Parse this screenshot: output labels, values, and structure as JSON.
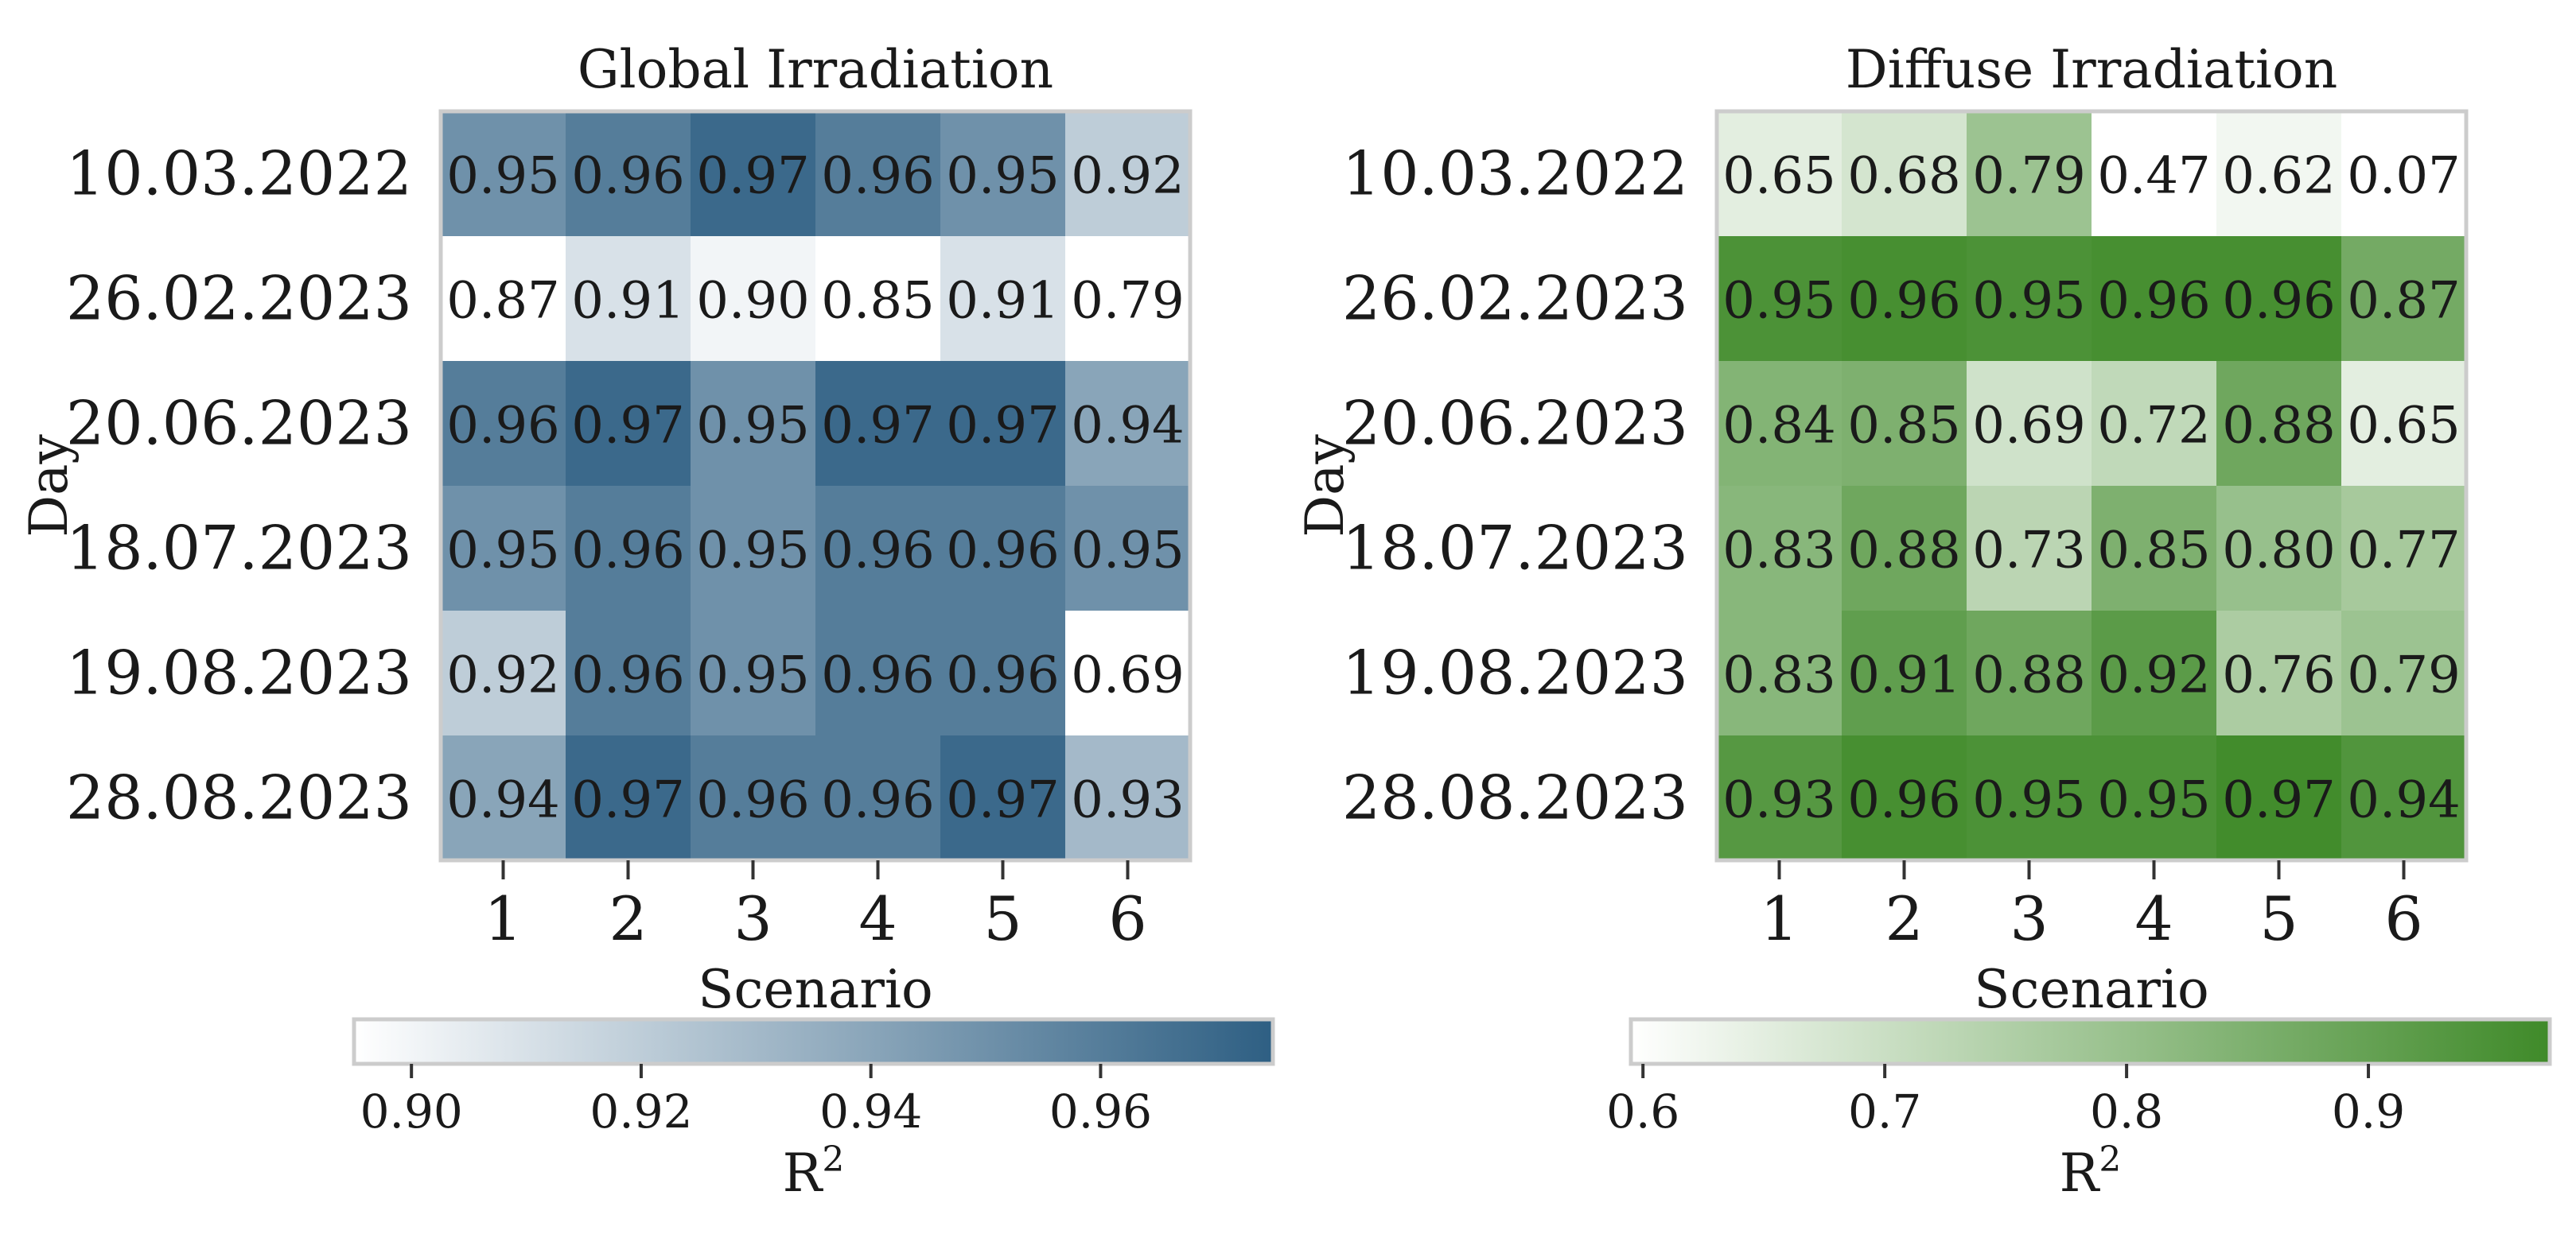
{
  "chart_data": [
    {
      "type": "heatmap",
      "title": "Global Irradiation",
      "xlabel": "Scenario",
      "ylabel": "Day",
      "x_categories": [
        "1",
        "2",
        "3",
        "4",
        "5",
        "6"
      ],
      "y_categories": [
        "10.03.2022",
        "26.02.2023",
        "20.06.2023",
        "18.07.2023",
        "19.08.2023",
        "28.08.2023"
      ],
      "values": [
        [
          0.95,
          0.96,
          0.97,
          0.96,
          0.95,
          0.92
        ],
        [
          0.87,
          0.91,
          0.9,
          0.85,
          0.91,
          0.79
        ],
        [
          0.96,
          0.97,
          0.95,
          0.97,
          0.97,
          0.94
        ],
        [
          0.95,
          0.96,
          0.95,
          0.96,
          0.96,
          0.95
        ],
        [
          0.92,
          0.96,
          0.95,
          0.96,
          0.96,
          0.69
        ],
        [
          0.94,
          0.97,
          0.96,
          0.96,
          0.97,
          0.93
        ]
      ],
      "labels": [
        [
          "0.95",
          "0.96",
          "0.97",
          "0.96",
          "0.95",
          "0.92"
        ],
        [
          "0.87",
          "0.91",
          "0.90",
          "0.85",
          "0.91",
          "0.79"
        ],
        [
          "0.96",
          "0.97",
          "0.95",
          "0.97",
          "0.97",
          "0.94"
        ],
        [
          "0.95",
          "0.96",
          "0.95",
          "0.96",
          "0.96",
          "0.95"
        ],
        [
          "0.92",
          "0.96",
          "0.95",
          "0.96",
          "0.96",
          "0.69"
        ],
        [
          "0.94",
          "0.97",
          "0.96",
          "0.96",
          "0.97",
          "0.93"
        ]
      ],
      "colormap": {
        "low": "#ffffff",
        "high": "#2e5f83"
      },
      "color_range": [
        0.895,
        0.975
      ],
      "colorbar": {
        "label": "R2",
        "ticks": [
          0.9,
          0.92,
          0.94,
          0.96
        ],
        "tick_labels": [
          "0.90",
          "0.92",
          "0.94",
          "0.96"
        ]
      }
    },
    {
      "type": "heatmap",
      "title": "Diffuse Irradiation",
      "xlabel": "Scenario",
      "ylabel": "Day",
      "x_categories": [
        "1",
        "2",
        "3",
        "4",
        "5",
        "6"
      ],
      "y_categories": [
        "10.03.2022",
        "26.02.2023",
        "20.06.2023",
        "18.07.2023",
        "19.08.2023",
        "28.08.2023"
      ],
      "values": [
        [
          0.65,
          0.68,
          0.79,
          0.47,
          0.62,
          0.07
        ],
        [
          0.95,
          0.96,
          0.95,
          0.96,
          0.96,
          0.87
        ],
        [
          0.84,
          0.85,
          0.69,
          0.72,
          0.88,
          0.65
        ],
        [
          0.83,
          0.88,
          0.73,
          0.85,
          0.8,
          0.77
        ],
        [
          0.83,
          0.91,
          0.88,
          0.92,
          0.76,
          0.79
        ],
        [
          0.93,
          0.96,
          0.95,
          0.95,
          0.97,
          0.94
        ]
      ],
      "labels": [
        [
          "0.65",
          "0.68",
          "0.79",
          "0.47",
          "0.62",
          "0.07"
        ],
        [
          "0.95",
          "0.96",
          "0.95",
          "0.96",
          "0.96",
          "0.87"
        ],
        [
          "0.84",
          "0.85",
          "0.69",
          "0.72",
          "0.88",
          "0.65"
        ],
        [
          "0.83",
          "0.88",
          "0.73",
          "0.85",
          "0.80",
          "0.77"
        ],
        [
          "0.83",
          "0.91",
          "0.88",
          "0.92",
          "0.76",
          "0.79"
        ],
        [
          "0.93",
          "0.96",
          "0.95",
          "0.95",
          "0.97",
          "0.94"
        ]
      ],
      "colormap": {
        "low": "#ffffff",
        "high": "#3f8a29"
      },
      "color_range": [
        0.595,
        0.975
      ],
      "colorbar": {
        "label": "R2",
        "ticks": [
          0.6,
          0.7,
          0.8,
          0.9
        ],
        "tick_labels": [
          "0.6",
          "0.7",
          "0.8",
          "0.9"
        ]
      }
    }
  ]
}
